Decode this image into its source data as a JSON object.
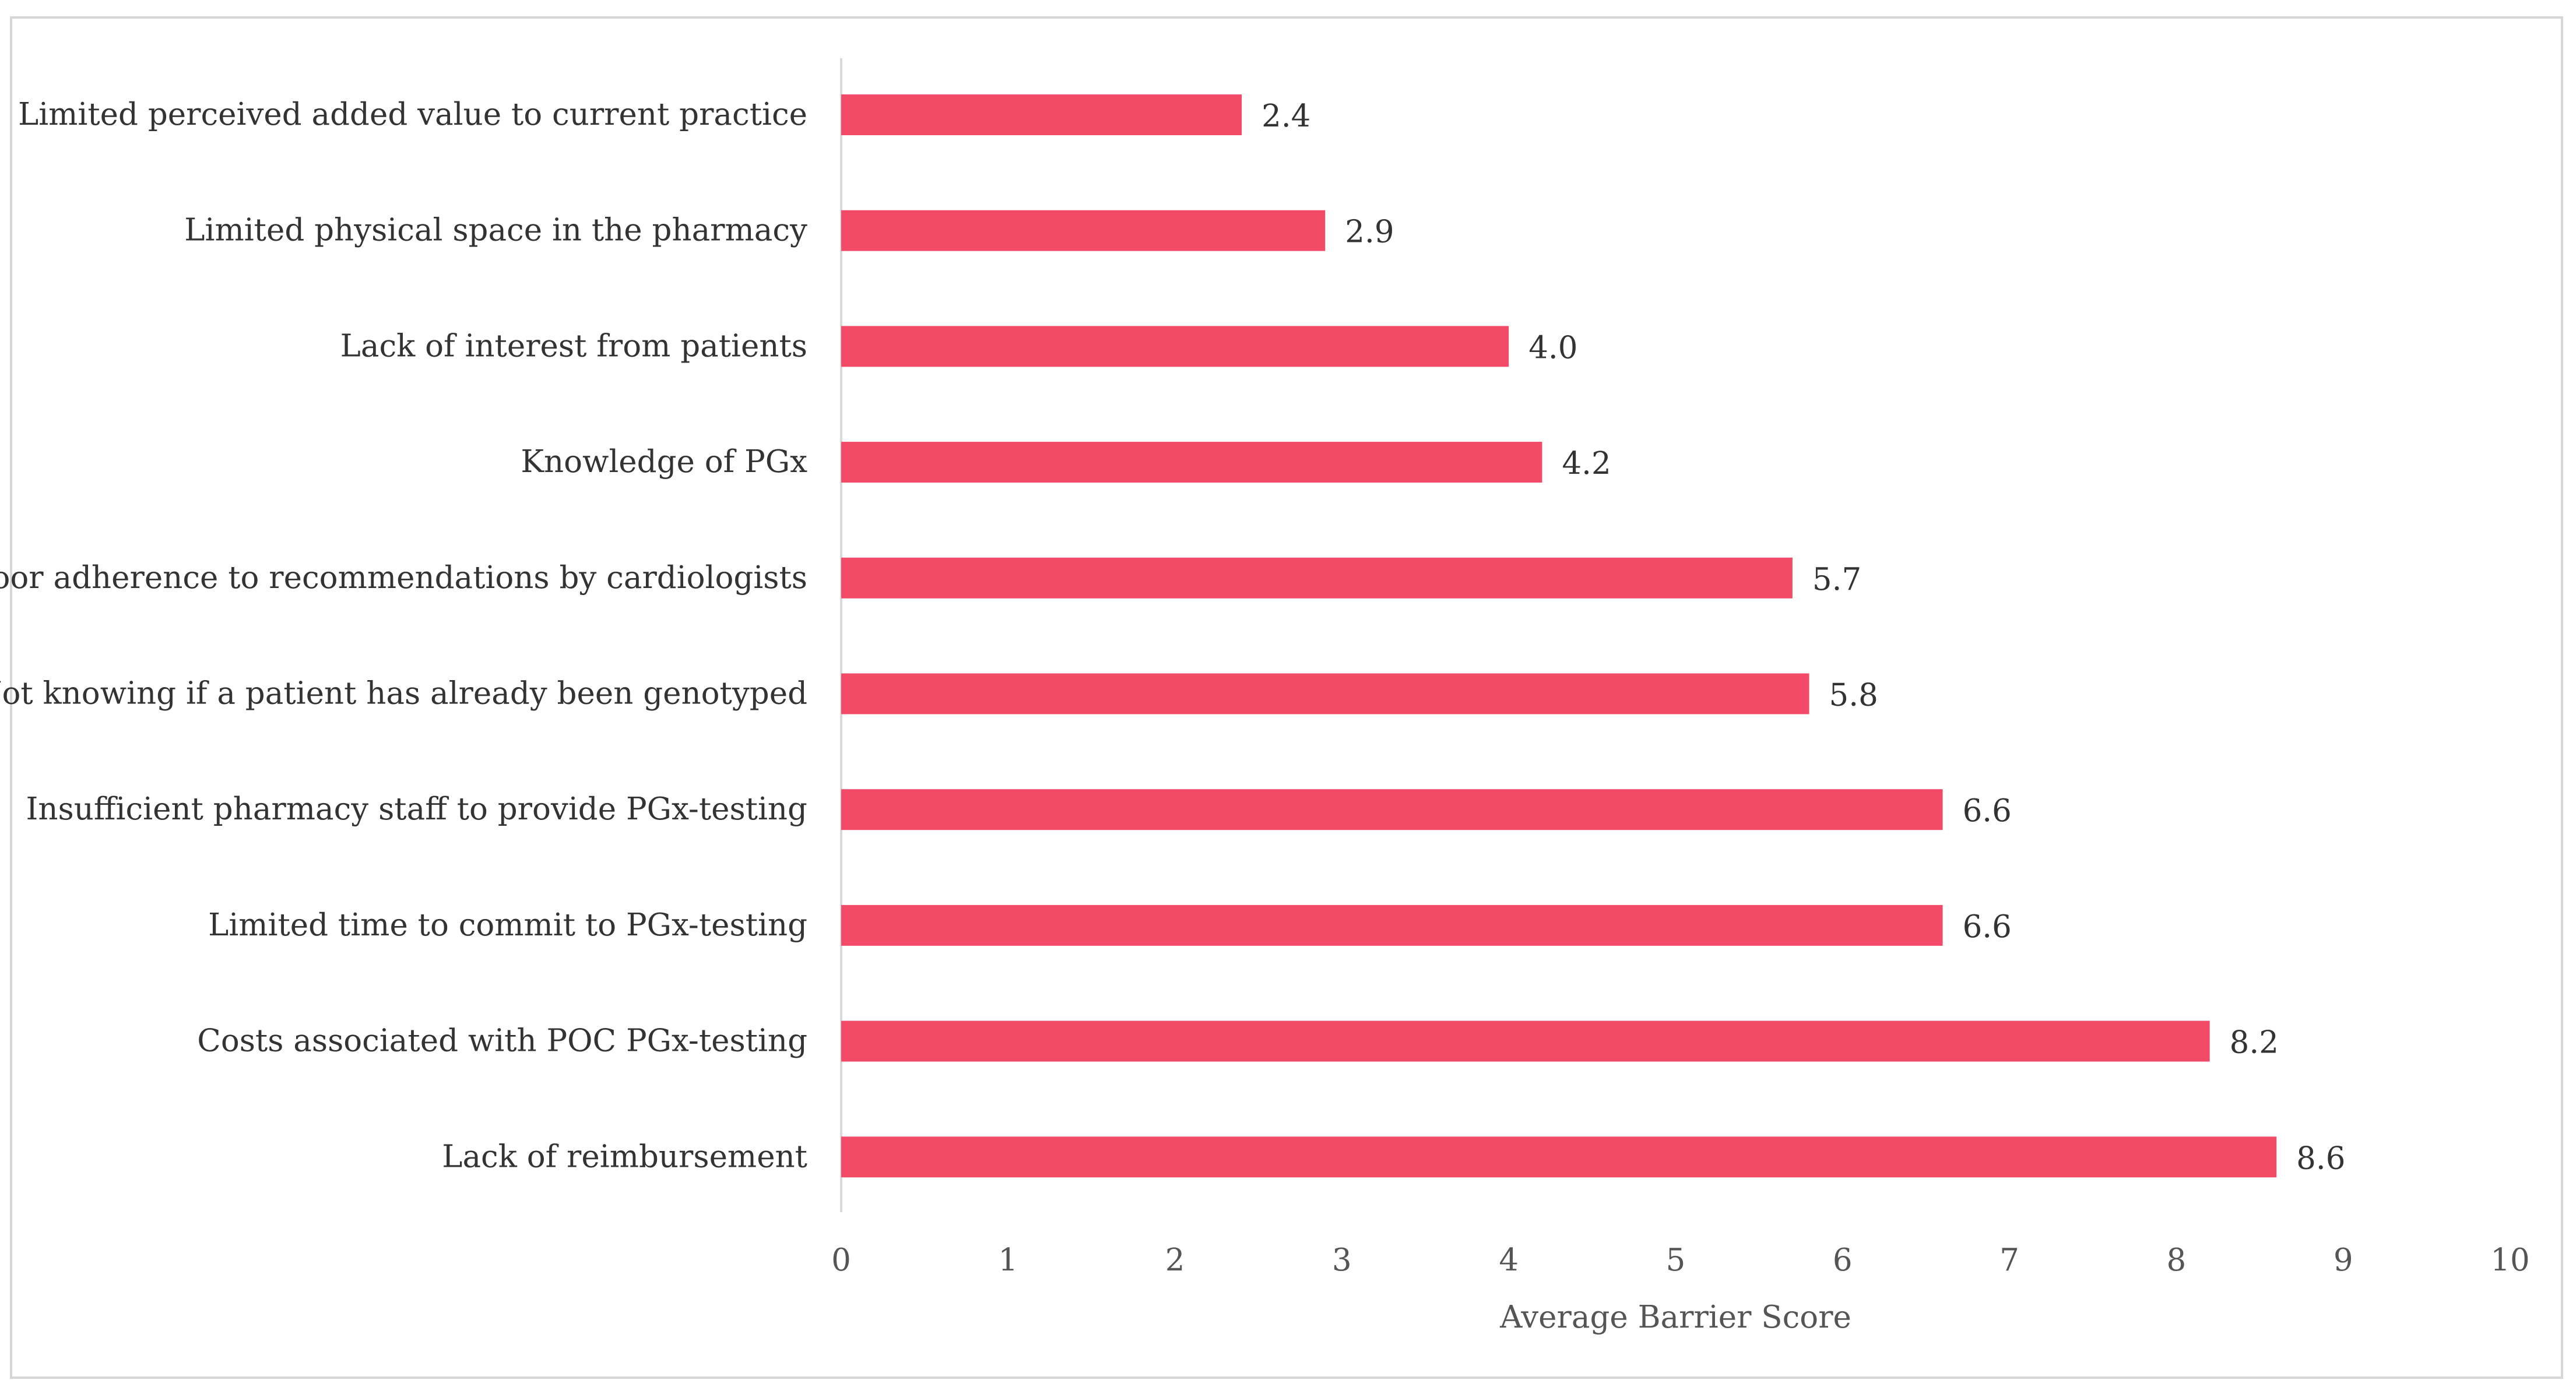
{
  "chart_data": {
    "type": "bar",
    "orientation": "horizontal",
    "title": "",
    "xlabel": "Average Barrier Score",
    "ylabel": "",
    "xlim": [
      0,
      10
    ],
    "xticks": [
      0,
      1,
      2,
      3,
      4,
      5,
      6,
      7,
      8,
      9,
      10
    ],
    "grid": false,
    "legend": "none",
    "bar_color": "#f34a68",
    "categories": [
      "Limited perceived added value to current practice",
      "Limited physical space in the pharmacy",
      "Lack of interest from patients",
      "Knowledge of PGx",
      "Poor adherence to recommendations by cardiologists",
      "Not knowing if a patient has already been genotyped",
      "Insufficient pharmacy staff to provide PGx-testing",
      "Limited time to commit to PGx-testing",
      "Costs associated with POC PGx-testing",
      "Lack of reimbursement"
    ],
    "values": [
      2.4,
      2.9,
      4.0,
      4.2,
      5.7,
      5.8,
      6.6,
      6.6,
      8.2,
      8.6
    ],
    "value_labels": [
      "2.4",
      "2.9",
      "4.0",
      "4.2",
      "5.7",
      "5.8",
      "6.6",
      "6.6",
      "8.2",
      "8.6"
    ]
  }
}
